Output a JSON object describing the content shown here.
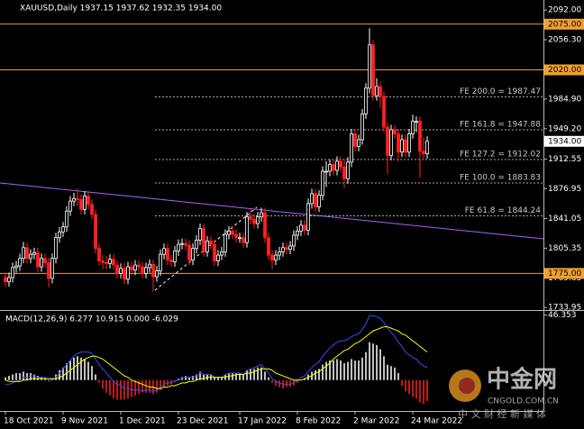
{
  "chart_data": [
    {
      "type": "candlestick",
      "title": "XAUUSD,Daily  1937.15 1937.62 1932.35 1934.00",
      "open": [
        1770,
        1765,
        1770,
        1782,
        1784,
        1793,
        1806,
        1793,
        1798,
        1800,
        1783,
        1793,
        1788,
        1769,
        1793,
        1818,
        1825,
        1831,
        1850,
        1862,
        1865,
        1864,
        1852,
        1868,
        1858,
        1846,
        1805,
        1790,
        1788,
        1787,
        1792,
        1785,
        1775,
        1781,
        1768,
        1783,
        1779,
        1785,
        1783,
        1775,
        1782,
        1786,
        1771,
        1778,
        1798,
        1805,
        1791,
        1789,
        1802,
        1810,
        1811,
        1809,
        1791,
        1805,
        1815,
        1829,
        1801,
        1814,
        1810,
        1790,
        1797,
        1801,
        1822,
        1826,
        1822,
        1818,
        1818,
        1812,
        1843,
        1840,
        1835,
        1843,
        1848,
        1818,
        1797,
        1791,
        1797,
        1801,
        1806,
        1804,
        1808,
        1821,
        1826,
        1833,
        1827,
        1859,
        1871,
        1855,
        1869,
        1898,
        1898,
        1906,
        1899,
        1910,
        1903,
        1889,
        1909,
        1943,
        1928,
        1936,
        1967,
        1998,
        2050,
        1989,
        2000,
        1988,
        1951,
        1917,
        1948,
        1943,
        1921,
        1936,
        1921,
        1943,
        1958,
        1958,
        1922,
        1919
      ],
      "high": [
        1776,
        1776,
        1788,
        1790,
        1799,
        1813,
        1812,
        1804,
        1806,
        1806,
        1799,
        1799,
        1794,
        1799,
        1824,
        1831,
        1837,
        1856,
        1868,
        1872,
        1877,
        1870,
        1874,
        1874,
        1864,
        1852,
        1811,
        1797,
        1796,
        1798,
        1798,
        1791,
        1787,
        1787,
        1789,
        1789,
        1791,
        1791,
        1789,
        1788,
        1792,
        1792,
        1784,
        1804,
        1811,
        1811,
        1797,
        1808,
        1816,
        1817,
        1817,
        1815,
        1811,
        1821,
        1835,
        1835,
        1820,
        1820,
        1816,
        1803,
        1807,
        1828,
        1832,
        1832,
        1828,
        1824,
        1824,
        1849,
        1853,
        1846,
        1849,
        1854,
        1854,
        1824,
        1803,
        1803,
        1807,
        1812,
        1812,
        1814,
        1827,
        1832,
        1839,
        1839,
        1865,
        1877,
        1877,
        1875,
        1904,
        1910,
        1912,
        1912,
        1916,
        1916,
        1913,
        1915,
        1949,
        1949,
        1942,
        1973,
        2004,
        2070,
        2056,
        2010,
        2006,
        1994,
        1957,
        1954,
        1954,
        1949,
        1942,
        1942,
        1949,
        1966,
        1964,
        1964,
        1939,
        1940
      ],
      "low": [
        1759,
        1759,
        1764,
        1776,
        1778,
        1787,
        1787,
        1787,
        1792,
        1777,
        1777,
        1782,
        1758,
        1763,
        1787,
        1812,
        1819,
        1825,
        1844,
        1856,
        1856,
        1846,
        1846,
        1852,
        1840,
        1799,
        1784,
        1780,
        1780,
        1781,
        1779,
        1769,
        1769,
        1762,
        1762,
        1773,
        1773,
        1777,
        1769,
        1769,
        1776,
        1753,
        1765,
        1772,
        1792,
        1785,
        1783,
        1783,
        1796,
        1804,
        1803,
        1785,
        1785,
        1799,
        1809,
        1795,
        1795,
        1804,
        1784,
        1784,
        1791,
        1795,
        1816,
        1816,
        1812,
        1812,
        1806,
        1806,
        1834,
        1829,
        1829,
        1837,
        1812,
        1791,
        1780,
        1785,
        1791,
        1795,
        1798,
        1798,
        1802,
        1815,
        1820,
        1821,
        1821,
        1853,
        1849,
        1849,
        1863,
        1879,
        1892,
        1893,
        1893,
        1897,
        1878,
        1883,
        1903,
        1922,
        1922,
        1930,
        1961,
        1992,
        1983,
        1983,
        1974,
        1945,
        1895,
        1911,
        1937,
        1910,
        1915,
        1915,
        1915,
        1937,
        1945,
        1890,
        1913,
        1913
      ],
      "close": [
        1765,
        1770,
        1782,
        1784,
        1793,
        1806,
        1793,
        1798,
        1800,
        1783,
        1793,
        1788,
        1769,
        1793,
        1818,
        1825,
        1831,
        1850,
        1862,
        1865,
        1864,
        1852,
        1868,
        1858,
        1846,
        1805,
        1790,
        1788,
        1787,
        1792,
        1785,
        1775,
        1781,
        1768,
        1783,
        1779,
        1785,
        1783,
        1775,
        1782,
        1786,
        1771,
        1778,
        1798,
        1805,
        1791,
        1789,
        1802,
        1810,
        1811,
        1809,
        1791,
        1805,
        1815,
        1829,
        1801,
        1814,
        1810,
        1790,
        1797,
        1801,
        1822,
        1826,
        1822,
        1818,
        1818,
        1812,
        1843,
        1840,
        1835,
        1843,
        1848,
        1818,
        1797,
        1791,
        1797,
        1801,
        1806,
        1804,
        1808,
        1821,
        1826,
        1833,
        1827,
        1859,
        1871,
        1855,
        1869,
        1898,
        1898,
        1906,
        1899,
        1910,
        1903,
        1889,
        1909,
        1943,
        1928,
        1936,
        1967,
        1998,
        2050,
        1989,
        2000,
        1988,
        1951,
        1917,
        1948,
        1943,
        1921,
        1936,
        1921,
        1943,
        1958,
        1958,
        1922,
        1919,
        1934
      ],
      "up_color": "#ffffff",
      "down_color": "#ff2020",
      "xlim": [
        -1.5,
        149.25
      ],
      "xticks": [
        {
          "value": 0,
          "label": "18 Oct 2021"
        },
        {
          "value": 16,
          "label": "9 Nov 2021"
        },
        {
          "value": 32,
          "label": "1 Dec 2021"
        },
        {
          "value": 48,
          "label": "23 Dec 2021"
        },
        {
          "value": 65,
          "label": "17 Jan 2022"
        },
        {
          "value": 81,
          "label": "8 Feb 2022"
        },
        {
          "value": 97,
          "label": "2 Mar 2022"
        },
        {
          "value": 113,
          "label": "24 Mar 2022"
        }
      ],
      "ylim": [
        1732,
        2103
      ],
      "yticks": [
        {
          "value": 2092,
          "label": "2092.00"
        },
        {
          "value": 2056.3,
          "label": "2056.30"
        },
        {
          "value": 1984.9,
          "label": "1984.90"
        },
        {
          "value": 1949.2,
          "label": "1949.20"
        },
        {
          "value": 1912.55,
          "label": "1912.55"
        },
        {
          "value": 1876.95,
          "label": "1876.95"
        },
        {
          "value": 1841.05,
          "label": "1841.05"
        },
        {
          "value": 1805.35,
          "label": "1805.35"
        },
        {
          "value": 1769.65,
          "label": "1769.65"
        },
        {
          "value": 1733.95,
          "label": "1733.95"
        }
      ],
      "levels": [
        {
          "value": 2075,
          "label": "2075.00"
        },
        {
          "value": 2020,
          "label": "2020.00"
        },
        {
          "value": 1775,
          "label": "1775.00"
        }
      ],
      "level_color": "#f0a030",
      "fib_levels": [
        {
          "value": 1987.47,
          "label": "FE 200.0 = 1987.47"
        },
        {
          "value": 1947.88,
          "label": "FE 161.8 = 1947.88"
        },
        {
          "value": 1912.02,
          "label": "FE 127.2 = 1912.02"
        },
        {
          "value": 1883.83,
          "label": "FE 100.0 = 1883.83"
        },
        {
          "value": 1844.24,
          "label": "FE 61.8 = 1844.24"
        }
      ],
      "last_price": {
        "value": 1934,
        "label": "1934.00"
      }
    },
    {
      "type": "macd",
      "title": "MACD(12,26,9) 6.277 10.915 0.000 -6.029",
      "histogram": [
        2,
        3,
        4,
        5,
        5,
        6,
        5,
        5,
        4,
        3,
        2,
        1,
        -1,
        1,
        4,
        7,
        9,
        12,
        14,
        16,
        17,
        16,
        15,
        13,
        10,
        4,
        -2,
        -6,
        -9,
        -11,
        -13,
        -14,
        -14,
        -14,
        -13,
        -12,
        -11,
        -10,
        -9,
        -9,
        -9,
        -10,
        -9,
        -7,
        -5,
        -4,
        -3,
        -1,
        1,
        2,
        3,
        2,
        3,
        4,
        6,
        4,
        4,
        4,
        2,
        2,
        2,
        4,
        5,
        5,
        5,
        5,
        4,
        7,
        8,
        8,
        9,
        9,
        6,
        2,
        -2,
        -4,
        -5,
        -6,
        -5,
        -5,
        -4,
        -2,
        0,
        1,
        4,
        6,
        7,
        8,
        11,
        13,
        14,
        14,
        15,
        14,
        12,
        13,
        15,
        14,
        14,
        16,
        20,
        27,
        26,
        25,
        22,
        17,
        11,
        10,
        9,
        5,
        -4,
        -8,
        -10,
        -12,
        -13,
        -16,
        -17,
        -15
      ],
      "macd": [
        -3,
        -3,
        -2,
        -1,
        0,
        2,
        2,
        3,
        3,
        2,
        2,
        2,
        0,
        0,
        2,
        5,
        8,
        11,
        14,
        17,
        19,
        20,
        20,
        20,
        19,
        15,
        11,
        8,
        5,
        2,
        -1,
        -3,
        -4,
        -6,
        -6,
        -7,
        -7,
        -7,
        -8,
        -7,
        -7,
        -8,
        -7,
        -5,
        -3,
        -2,
        -2,
        -1,
        0,
        1,
        2,
        2,
        2,
        3,
        5,
        4,
        4,
        4,
        2,
        2,
        2,
        4,
        5,
        5,
        5,
        5,
        4,
        7,
        8,
        9,
        10,
        11,
        8,
        5,
        1,
        -1,
        -2,
        -3,
        -3,
        -3,
        -2,
        0,
        2,
        3,
        6,
        9,
        11,
        13,
        17,
        20,
        23,
        25,
        27,
        28,
        28,
        29,
        31,
        32,
        33,
        36,
        40,
        46,
        46,
        45,
        44,
        41,
        37,
        34,
        31,
        27,
        24,
        20,
        18,
        16,
        15,
        12,
        10,
        9
      ],
      "signal": [
        0,
        -1,
        -1,
        -1,
        -1,
        0,
        0,
        1,
        1,
        1,
        1,
        1,
        1,
        1,
        1,
        2,
        3,
        5,
        7,
        9,
        11,
        13,
        15,
        16,
        17,
        17,
        16,
        15,
        13,
        11,
        9,
        7,
        5,
        3,
        2,
        0,
        -1,
        -2,
        -3,
        -4,
        -5,
        -5,
        -6,
        -6,
        -5,
        -5,
        -4,
        -4,
        -3,
        -2,
        -2,
        -1,
        -1,
        0,
        1,
        1,
        2,
        2,
        2,
        2,
        2,
        2,
        3,
        3,
        4,
        4,
        4,
        5,
        5,
        6,
        7,
        8,
        8,
        8,
        7,
        5,
        4,
        3,
        2,
        1,
        0,
        0,
        0,
        1,
        2,
        3,
        5,
        6,
        8,
        10,
        12,
        15,
        17,
        19,
        21,
        22,
        24,
        26,
        27,
        29,
        31,
        33,
        35,
        36,
        37,
        38,
        38,
        37,
        36,
        35,
        33,
        32,
        30,
        28,
        26,
        24,
        22,
        20
      ],
      "pos_color": "#ffffff",
      "neg_color": "#ff2020",
      "macd_color": "#3050ff",
      "signal_color": "#ffff00",
      "xlim": [
        -1.5,
        149.25
      ],
      "ylim": [
        -22,
        48
      ],
      "yticks": [
        {
          "value": 46.353,
          "label": "46.353"
        }
      ]
    }
  ],
  "watermark": {
    "brand": "中金网",
    "site": "CNGOLD.COM.CN",
    "slogan": "中 文 财 经 新 媒 体"
  }
}
